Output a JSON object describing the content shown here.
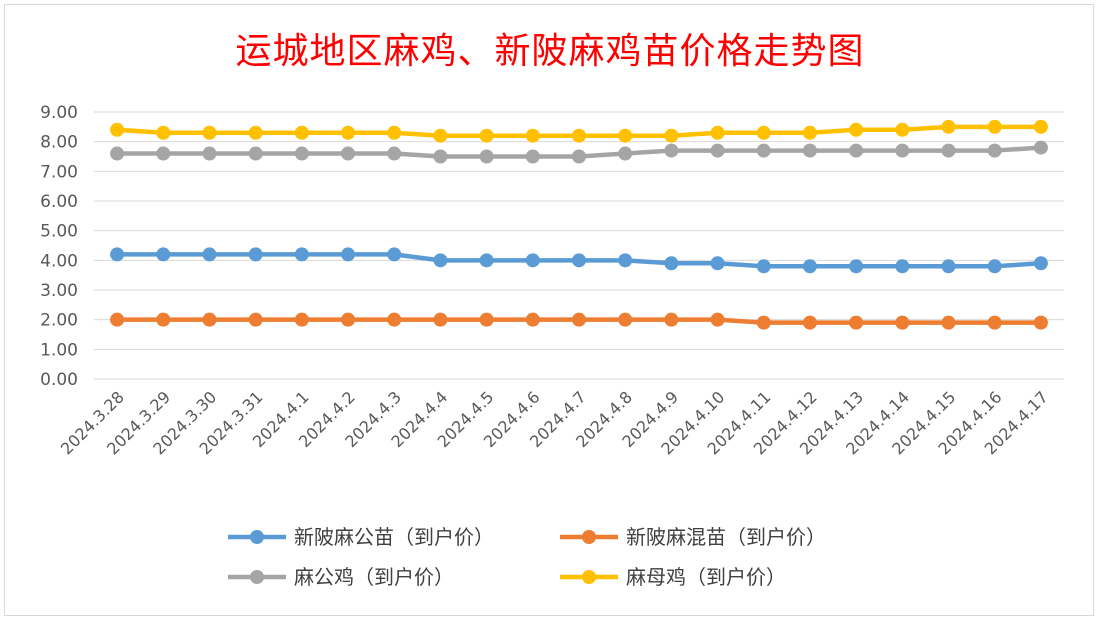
{
  "chart_data": {
    "type": "line",
    "title": "运城地区麻鸡、新陂麻鸡苗价格走势图",
    "x": [
      "2024.3.28",
      "2024.3.29",
      "2024.3.30",
      "2024.3.31",
      "2024.4.1",
      "2024.4.2",
      "2024.4.3",
      "2024.4.4",
      "2024.4.5",
      "2024.4.6",
      "2024.4.7",
      "2024.4.8",
      "2024.4.9",
      "2024.4.10",
      "2024.4.11",
      "2024.4.12",
      "2024.4.13",
      "2024.4.14",
      "2024.4.15",
      "2024.4.16",
      "2024.4.17"
    ],
    "yticks": [
      "0.00",
      "1.00",
      "2.00",
      "3.00",
      "4.00",
      "5.00",
      "6.00",
      "7.00",
      "8.00",
      "9.00"
    ],
    "ylim": [
      0,
      9
    ],
    "grid": true,
    "legend_placement": "bottom",
    "series": [
      {
        "name": "新陂麻公苗（到户价）",
        "color": "#5b9bd5",
        "values": [
          4.2,
          4.2,
          4.2,
          4.2,
          4.2,
          4.2,
          4.2,
          4.0,
          4.0,
          4.0,
          4.0,
          4.0,
          3.9,
          3.9,
          3.8,
          3.8,
          3.8,
          3.8,
          3.8,
          3.8,
          3.9
        ]
      },
      {
        "name": "新陂麻混苗（到户价）",
        "color": "#ed7d31",
        "values": [
          2.0,
          2.0,
          2.0,
          2.0,
          2.0,
          2.0,
          2.0,
          2.0,
          2.0,
          2.0,
          2.0,
          2.0,
          2.0,
          2.0,
          1.9,
          1.9,
          1.9,
          1.9,
          1.9,
          1.9,
          1.9
        ]
      },
      {
        "name": "麻公鸡（到户价）",
        "color": "#a5a5a5",
        "values": [
          7.6,
          7.6,
          7.6,
          7.6,
          7.6,
          7.6,
          7.6,
          7.5,
          7.5,
          7.5,
          7.5,
          7.6,
          7.7,
          7.7,
          7.7,
          7.7,
          7.7,
          7.7,
          7.7,
          7.7,
          7.8
        ]
      },
      {
        "name": "麻母鸡（到户价）",
        "color": "#ffc000",
        "values": [
          8.4,
          8.3,
          8.3,
          8.3,
          8.3,
          8.3,
          8.3,
          8.2,
          8.2,
          8.2,
          8.2,
          8.2,
          8.2,
          8.3,
          8.3,
          8.3,
          8.4,
          8.4,
          8.5,
          8.5,
          8.5
        ]
      }
    ]
  }
}
